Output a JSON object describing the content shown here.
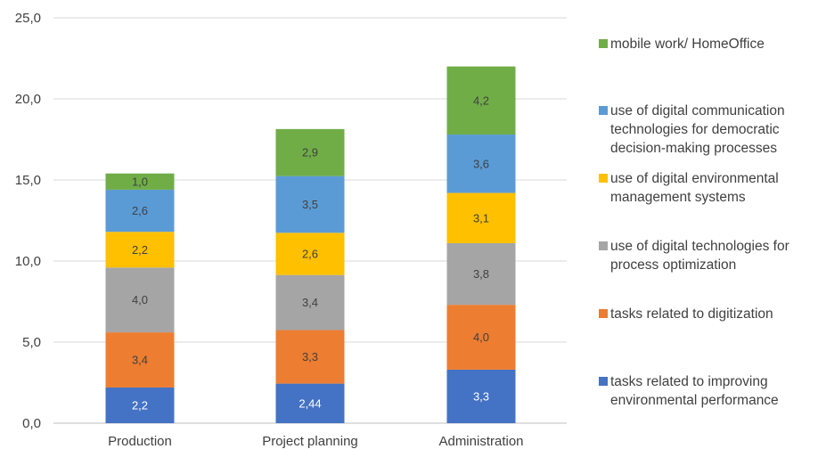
{
  "chart_data": {
    "type": "bar",
    "stacked": true,
    "categories": [
      "Production",
      "Project planning",
      "Administration"
    ],
    "ylim": [
      0,
      25
    ],
    "yticks": [
      "0,0",
      "5,0",
      "10,0",
      "15,0",
      "20,0",
      "25,0"
    ],
    "ytick_values": [
      0,
      5,
      10,
      15,
      20,
      25
    ],
    "grid": true,
    "legend_position": "right",
    "series": [
      {
        "name": "tasks related to improving environmental performance",
        "color": "#4472C4",
        "values": [
          2.2,
          2.44,
          3.3
        ],
        "labels": [
          "2,2",
          "2,44",
          "3,3"
        ],
        "label_color": "#ffffff"
      },
      {
        "name": "tasks related to digitization",
        "color": "#ED7D31",
        "values": [
          3.4,
          3.3,
          4.0
        ],
        "labels": [
          "3,4",
          "3,3",
          "4,0"
        ],
        "label_color": "#404040"
      },
      {
        "name": "use of digital technologies for process optimization",
        "color": "#A5A5A5",
        "values": [
          4.0,
          3.4,
          3.8
        ],
        "labels": [
          "4,0",
          "3,4",
          "3,8"
        ],
        "label_color": "#404040"
      },
      {
        "name": "use of digital environmental management systems",
        "color": "#FFC000",
        "values": [
          2.2,
          2.6,
          3.1
        ],
        "labels": [
          "2,2",
          "2,6",
          "3,1"
        ],
        "label_color": "#404040"
      },
      {
        "name": "use of digital communication technologies for democratic decision-making processes",
        "color": "#5B9BD5",
        "values": [
          2.6,
          3.5,
          3.6
        ],
        "labels": [
          "2,6",
          "3,5",
          "3,6"
        ],
        "label_color": "#404040"
      },
      {
        "name": "mobile work/ HomeOffice",
        "color": "#70AD47",
        "values": [
          1.0,
          2.9,
          4.2
        ],
        "labels": [
          "1,0",
          "2,9",
          "4,2"
        ],
        "label_color": "#404040"
      }
    ]
  },
  "legend": [
    {
      "label_lines": [
        "mobile work/ HomeOffice"
      ],
      "color": "#70AD47"
    },
    {
      "label_lines": [
        "use of digital communication",
        "technologies for democratic",
        "decision-making processes"
      ],
      "color": "#5B9BD5"
    },
    {
      "label_lines": [
        "use of digital environmental",
        "management systems"
      ],
      "color": "#FFC000"
    },
    {
      "label_lines": [
        "use of digital technologies for",
        "process optimization"
      ],
      "color": "#A5A5A5"
    },
    {
      "label_lines": [
        "tasks related to digitization"
      ],
      "color": "#ED7D31"
    },
    {
      "label_lines": [
        "tasks related to improving",
        "environmental performance"
      ],
      "color": "#4472C4"
    }
  ]
}
